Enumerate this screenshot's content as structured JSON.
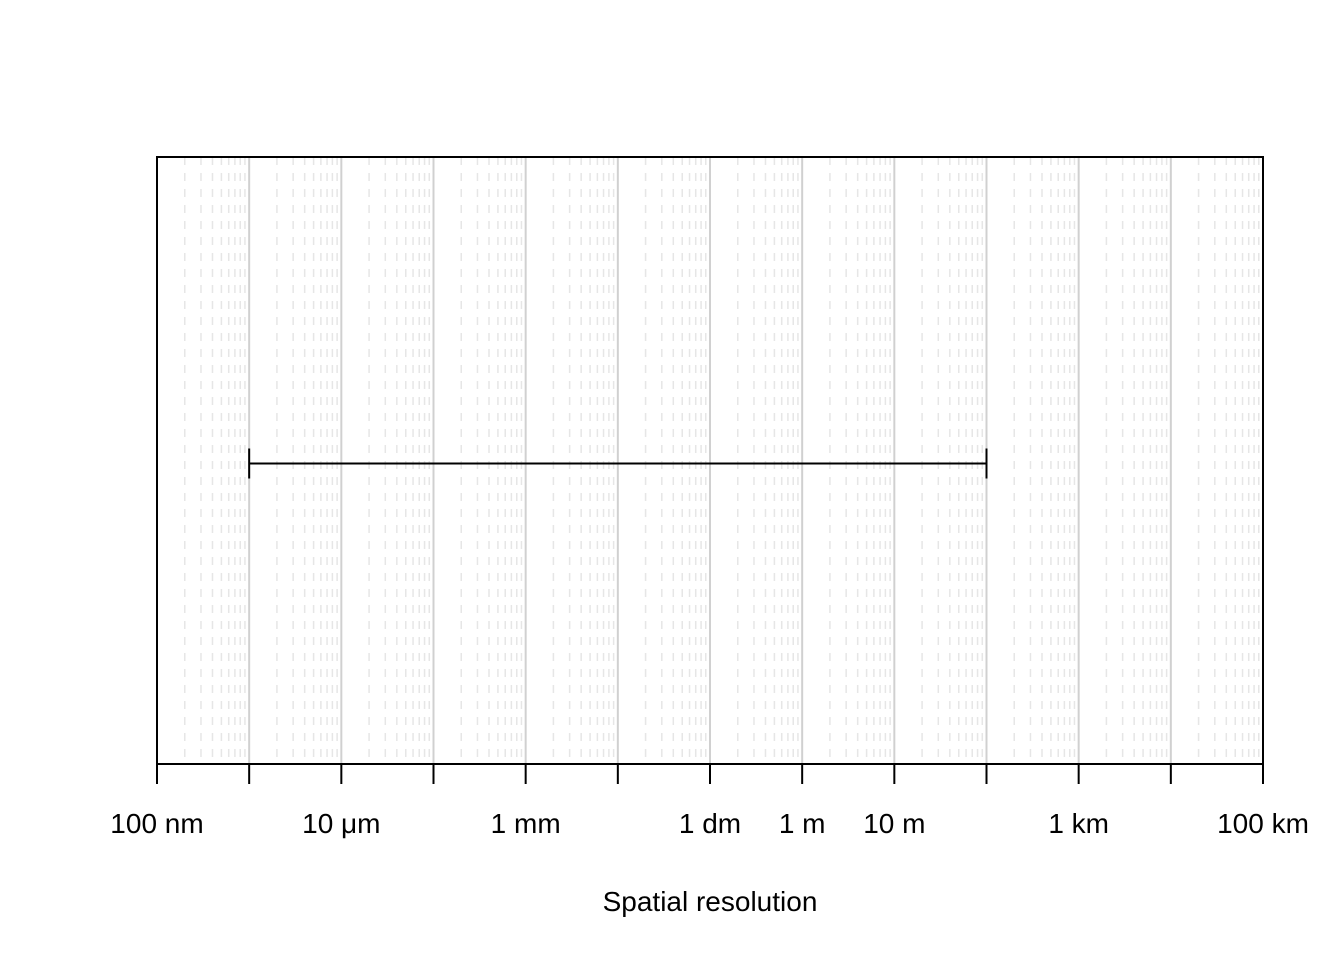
{
  "chart_data": {
    "type": "range",
    "scale": "log10",
    "unit": "m",
    "xlim": [
      1e-07,
      100000
    ],
    "xlabel": "Spatial resolution",
    "major_ticks": [
      1e-07,
      1e-06,
      1e-05,
      0.0001,
      0.001,
      0.01,
      0.1,
      1,
      10,
      100,
      1000,
      10000,
      100000
    ],
    "tick_labels": [
      {
        "value": 1e-07,
        "label": "100 nm"
      },
      {
        "value": 1e-05,
        "label": "10 μm"
      },
      {
        "value": 0.001,
        "label": "1 mm"
      },
      {
        "value": 0.1,
        "label": "1 dm"
      },
      {
        "value": 1,
        "label": "1 m"
      },
      {
        "value": 10,
        "label": "10 m"
      },
      {
        "value": 1000,
        "label": "1 km"
      },
      {
        "value": 100000,
        "label": "100 km"
      }
    ],
    "grid": {
      "major": true,
      "minor": true,
      "minor_style": "dashed"
    },
    "ranges": [
      {
        "min": 1e-06,
        "max": 100
      }
    ],
    "colors": {
      "axis": "#000000",
      "major_grid": "#d0d0d0",
      "minor_grid": "#e6e6e6",
      "range": "#000000"
    }
  }
}
